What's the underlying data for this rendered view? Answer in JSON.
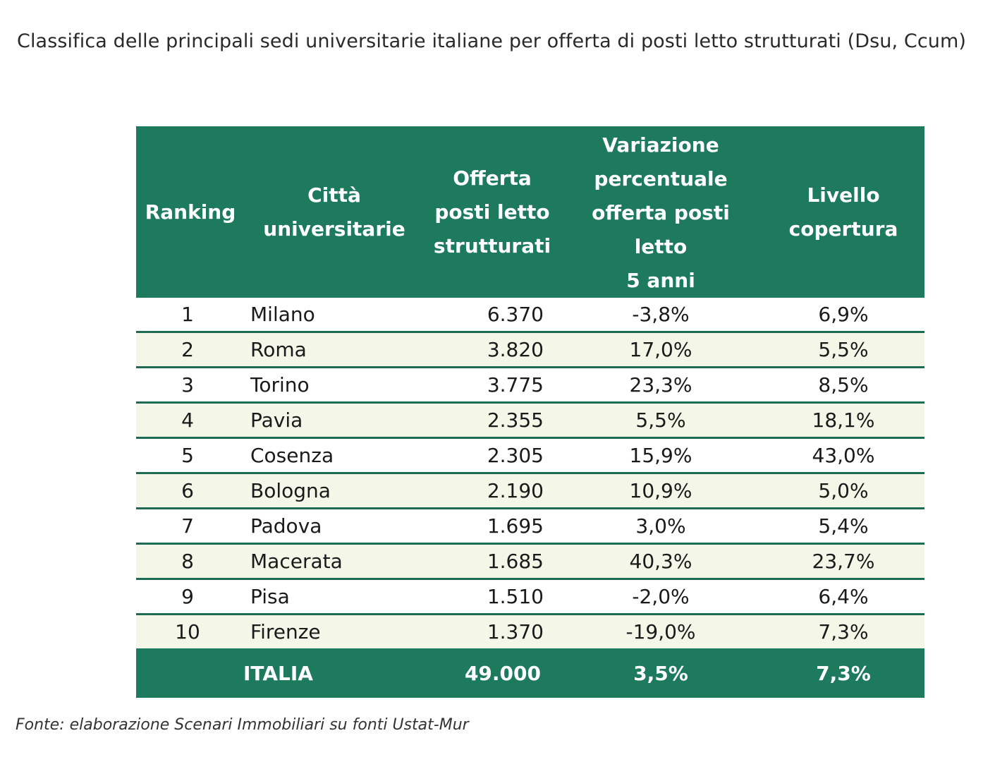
{
  "title": "Classifica delle principali sedi universitarie italiane per offerta di posti letto strutturati (Dsu, Ccum)",
  "table": {
    "headers": {
      "ranking": "Ranking",
      "city": "Città\nuniversitarie",
      "offer": "Offerta\nposti letto\nstrutturati",
      "variation": "Variazione\npercentuale\nofferta posti\nletto\n5 anni",
      "coverage": "Livello\ncopertura"
    },
    "rows": [
      {
        "rank": "1",
        "city": "Milano",
        "offer": "6.370",
        "variation": "-3,8%",
        "coverage": "6,9%"
      },
      {
        "rank": "2",
        "city": "Roma",
        "offer": "3.820",
        "variation": "17,0%",
        "coverage": "5,5%"
      },
      {
        "rank": "3",
        "city": "Torino",
        "offer": "3.775",
        "variation": "23,3%",
        "coverage": "8,5%"
      },
      {
        "rank": "4",
        "city": "Pavia",
        "offer": "2.355",
        "variation": "5,5%",
        "coverage": "18,1%"
      },
      {
        "rank": "5",
        "city": "Cosenza",
        "offer": "2.305",
        "variation": "15,9%",
        "coverage": "43,0%"
      },
      {
        "rank": "6",
        "city": "Bologna",
        "offer": "2.190",
        "variation": "10,9%",
        "coverage": "5,0%"
      },
      {
        "rank": "7",
        "city": "Padova",
        "offer": "1.695",
        "variation": "3,0%",
        "coverage": "5,4%"
      },
      {
        "rank": "8",
        "city": "Macerata",
        "offer": "1.685",
        "variation": "40,3%",
        "coverage": "23,7%"
      },
      {
        "rank": "9",
        "city": "Pisa",
        "offer": "1.510",
        "variation": "-2,0%",
        "coverage": "6,4%"
      },
      {
        "rank": "10",
        "city": "Firenze",
        "offer": "1.370",
        "variation": "-19,0%",
        "coverage": "7,3%"
      }
    ],
    "total": {
      "label": "ITALIA",
      "offer": "49.000",
      "variation": "3,5%",
      "coverage": "7,3%"
    }
  },
  "source": "Fonte: elaborazione Scenari Immobiliari su fonti Ustat-Mur",
  "colors": {
    "header_green": "#1d7a5c",
    "row_alt": "#f4f6e7",
    "divider": "#1d6b52"
  }
}
